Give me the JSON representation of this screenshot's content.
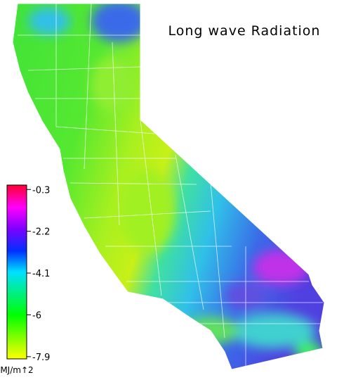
{
  "title": "Long wave Radiation",
  "colorbar": {
    "lim": [
      -8.0,
      -0.1
    ],
    "ticks": [
      -0.3,
      -2.2,
      -4.1,
      -6.0,
      -7.9
    ],
    "unit": "MJ/m↑2"
  }
}
